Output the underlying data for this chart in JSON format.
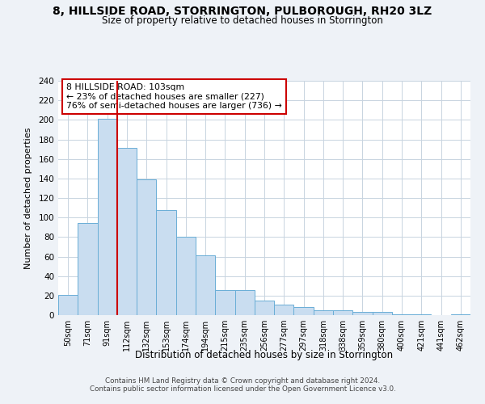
{
  "title": "8, HILLSIDE ROAD, STORRINGTON, PULBOROUGH, RH20 3LZ",
  "subtitle": "Size of property relative to detached houses in Storrington",
  "xlabel": "Distribution of detached houses by size in Storrington",
  "ylabel": "Number of detached properties",
  "bar_labels": [
    "50sqm",
    "71sqm",
    "91sqm",
    "112sqm",
    "132sqm",
    "153sqm",
    "174sqm",
    "194sqm",
    "215sqm",
    "235sqm",
    "256sqm",
    "277sqm",
    "297sqm",
    "318sqm",
    "338sqm",
    "359sqm",
    "380sqm",
    "400sqm",
    "421sqm",
    "441sqm",
    "462sqm"
  ],
  "bar_values": [
    21,
    94,
    201,
    171,
    139,
    108,
    80,
    61,
    26,
    26,
    15,
    11,
    8,
    5,
    5,
    3,
    3,
    1,
    1,
    0,
    1
  ],
  "bar_color": "#c9ddf0",
  "bar_edge_color": "#6aaed6",
  "vline_color": "#cc0000",
  "annotation_line1": "8 HILLSIDE ROAD: 103sqm",
  "annotation_line2": "← 23% of detached houses are smaller (227)",
  "annotation_line3": "76% of semi-detached houses are larger (736) →",
  "annotation_box_color": "#ffffff",
  "annotation_box_edge": "#cc0000",
  "ylim": [
    0,
    240
  ],
  "yticks": [
    0,
    20,
    40,
    60,
    80,
    100,
    120,
    140,
    160,
    180,
    200,
    220,
    240
  ],
  "footer1": "Contains HM Land Registry data © Crown copyright and database right 2024.",
  "footer2": "Contains public sector information licensed under the Open Government Licence v3.0.",
  "bg_color": "#eef2f7",
  "plot_bg_color": "#ffffff",
  "grid_color": "#c8d4e0"
}
